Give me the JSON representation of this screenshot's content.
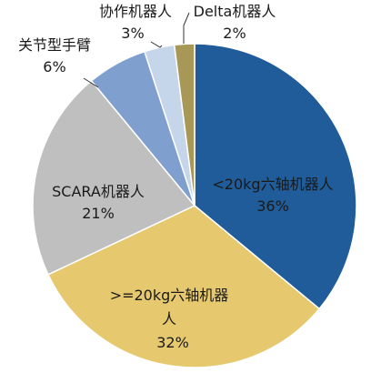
{
  "chart_data": {
    "type": "pie",
    "start_angle_deg": 0,
    "direction": "clockwise",
    "slices": [
      {
        "label": "<20kg六轴机器人",
        "value": 36,
        "value_label": "36%",
        "color": "#1f5c99"
      },
      {
        "label": ">=20kg六轴机器人",
        "value": 32,
        "value_label": "32%",
        "color": "#e6c96e"
      },
      {
        "label": "SCARA机器人",
        "value": 21,
        "value_label": "21%",
        "color": "#bfbfbf"
      },
      {
        "label": "关节型手臂",
        "value": 6,
        "value_label": "6%",
        "color": "#7f9fcf"
      },
      {
        "label": "协作机器人",
        "value": 3,
        "value_label": "3%",
        "color": "#c5d5ea"
      },
      {
        "label": "Delta机器人",
        "value": 2,
        "value_label": "2%",
        "color": "#a89858"
      }
    ],
    "labels_placement": "mixed-inside-outside",
    "leader_lines": true
  }
}
